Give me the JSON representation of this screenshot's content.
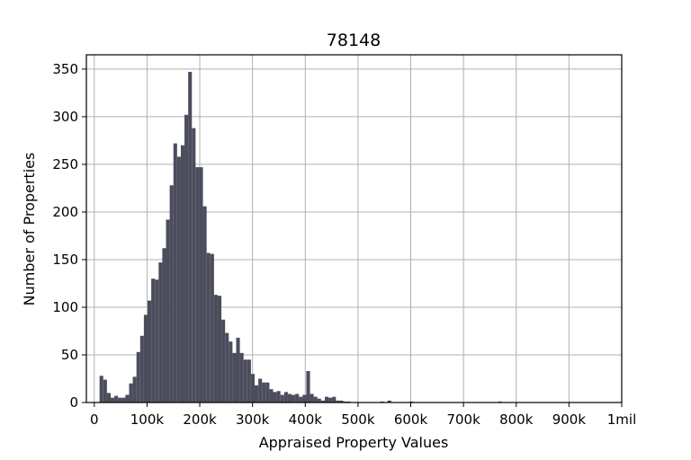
{
  "chart_data": {
    "type": "bar",
    "title": "78148",
    "xlabel": "Appraised Property Values",
    "ylabel": "Number of Properties",
    "xlim": [
      -15000,
      1000000
    ],
    "ylim": [
      0,
      365
    ],
    "grid": true,
    "bar_color": "#4b4d5c",
    "x_ticks": [
      {
        "value": 0,
        "label": "0"
      },
      {
        "value": 100000,
        "label": "100k"
      },
      {
        "value": 200000,
        "label": "200k"
      },
      {
        "value": 300000,
        "label": "300k"
      },
      {
        "value": 400000,
        "label": "400k"
      },
      {
        "value": 500000,
        "label": "500k"
      },
      {
        "value": 600000,
        "label": "600k"
      },
      {
        "value": 700000,
        "label": "700k"
      },
      {
        "value": 800000,
        "label": "800k"
      },
      {
        "value": 900000,
        "label": "900k"
      },
      {
        "value": 1000000,
        "label": "1mil"
      }
    ],
    "y_ticks": [
      {
        "value": 0,
        "label": "0"
      },
      {
        "value": 50,
        "label": "50"
      },
      {
        "value": 100,
        "label": "100"
      },
      {
        "value": 150,
        "label": "150"
      },
      {
        "value": 200,
        "label": "200"
      },
      {
        "value": 250,
        "label": "250"
      },
      {
        "value": 300,
        "label": "300"
      },
      {
        "value": 350,
        "label": "350"
      }
    ],
    "bin_width": 7000,
    "bin_start": 10000,
    "values": [
      28,
      24,
      10,
      5,
      7,
      5,
      5,
      8,
      20,
      27,
      53,
      70,
      92,
      107,
      130,
      129,
      147,
      162,
      192,
      228,
      272,
      258,
      270,
      302,
      347,
      288,
      247,
      247,
      206,
      157,
      156,
      113,
      112,
      87,
      73,
      64,
      52,
      68,
      52,
      45,
      45,
      30,
      18,
      25,
      21,
      21,
      14,
      11,
      12,
      8,
      11,
      9,
      8,
      9,
      6,
      8,
      33,
      9,
      6,
      4,
      2,
      6,
      5,
      6,
      2,
      2,
      1,
      1,
      0,
      0,
      0,
      0,
      0,
      0,
      0,
      0,
      1,
      0,
      2,
      0,
      0,
      0,
      0,
      0,
      1,
      0,
      0,
      0,
      0,
      0,
      0,
      0,
      0,
      0,
      0,
      0,
      0,
      0,
      0,
      0,
      0,
      0,
      0,
      0,
      0,
      0,
      0,
      0,
      1,
      0,
      0,
      0,
      0,
      0,
      0,
      0,
      0,
      0,
      0,
      0,
      0,
      0,
      0,
      0,
      0,
      0,
      0,
      0,
      0,
      0,
      0,
      0,
      0,
      0,
      0,
      0,
      0,
      0,
      0,
      0,
      0
    ]
  }
}
